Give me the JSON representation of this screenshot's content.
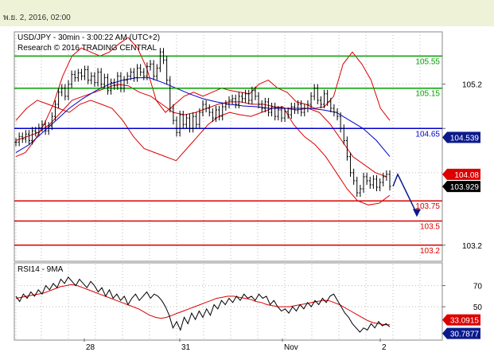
{
  "header": {
    "datetime": "พ.ย. 2, 2016, 02:00"
  },
  "chart_data": [
    {
      "type": "line",
      "title": "USD/JPY - 30min - 3:00:22 AM (UTC+2)",
      "subtitle": "Research © 2016 TRADING CENTRAL",
      "x_ticks": [
        "28",
        "31",
        "Nov",
        "2"
      ],
      "y_ticks": [
        105.2,
        104.65,
        103.2
      ],
      "ylim": [
        103.0,
        105.85
      ],
      "levels": [
        {
          "label": "105.55",
          "value": 105.55,
          "color": "#00a000"
        },
        {
          "label": "105.15",
          "value": 105.15,
          "color": "#00a000"
        },
        {
          "label": "104.65",
          "value": 104.65,
          "color": "#0000cc"
        },
        {
          "label": "103.75",
          "value": 103.75,
          "color": "#dd0000"
        },
        {
          "label": "103.5",
          "value": 103.5,
          "color": "#dd0000"
        },
        {
          "label": "103.2",
          "value": 103.2,
          "color": "#dd0000"
        }
      ],
      "price_tags": [
        {
          "label": "104.539",
          "value": 104.539,
          "bg": "#0a1a8c"
        },
        {
          "label": "104.08",
          "value": 104.08,
          "bg": "#dd0000"
        },
        {
          "label": "103.929",
          "value": 103.929,
          "bg": "#000000"
        }
      ],
      "series": [
        {
          "values": [
            104.48,
            104.55,
            104.52,
            104.58,
            104.5,
            104.62,
            104.6,
            104.66,
            104.7,
            104.62,
            104.68,
            104.8,
            104.95,
            105.1,
            105.15,
            105.05,
            105.2,
            105.32,
            105.28,
            105.34,
            105.3,
            105.38,
            105.25,
            105.3,
            105.22,
            105.35,
            105.2,
            105.28,
            105.12,
            105.22,
            105.18,
            105.3,
            105.15,
            105.25,
            105.3,
            105.35,
            105.28,
            105.4,
            105.35,
            105.3,
            105.42,
            105.45,
            105.3,
            105.4,
            105.6,
            105.5,
            105.25,
            104.9,
            104.75,
            104.6,
            104.82,
            104.7,
            104.78,
            104.65,
            104.8,
            104.7,
            104.85,
            104.95,
            104.9,
            104.85,
            104.78,
            104.88,
            104.8,
            104.92,
            104.95,
            105.0,
            105.02,
            104.95,
            105.05,
            105.02,
            105.08,
            105.0,
            105.12,
            105.05,
            104.95,
            104.9,
            104.98,
            104.85,
            104.92,
            104.8,
            104.88,
            104.78,
            104.86,
            104.82,
            104.92,
            104.88,
            104.95,
            104.85,
            104.9,
            104.95,
            105.05,
            105.15,
            105.0,
            104.95,
            105.08,
            104.98,
            104.9,
            104.85,
            104.8,
            104.65,
            104.5,
            104.3,
            104.1,
            104.0,
            103.85,
            103.9,
            104.05,
            104.0,
            103.95,
            104.02,
            103.92,
            103.98,
            104.05,
            104.08,
            103.93
          ],
          "color": "#000000"
        },
        {
          "values": [
            104.3,
            104.35,
            104.5,
            104.7,
            104.95,
            105.3,
            105.55,
            105.65,
            105.6,
            105.55,
            105.6,
            105.7,
            105.78,
            105.65,
            105.4,
            105.0,
            104.85,
            104.95,
            105.05,
            105.1,
            105.05,
            105.1,
            105.15,
            105.12,
            105.1,
            105.08,
            105.2,
            105.25,
            105.15,
            105.1,
            104.98,
            104.95,
            104.9,
            104.92,
            105.05,
            105.45,
            105.6,
            105.45,
            105.25,
            104.9,
            104.75
          ],
          "color": "#dd0000"
        },
        {
          "values": [
            104.75,
            104.9,
            105.0,
            104.95,
            104.9,
            104.85,
            104.95,
            105.0,
            104.95,
            104.9,
            104.75,
            104.55,
            104.4,
            104.35,
            104.3,
            104.25,
            104.4,
            104.55,
            104.7,
            104.8,
            104.85,
            104.82,
            104.8,
            104.85,
            104.9,
            104.92,
            104.7,
            104.55,
            104.45,
            104.3,
            104.1,
            103.9,
            103.75,
            103.7,
            103.72,
            103.82
          ],
          "color": "#dd0000"
        },
        {
          "values": [
            104.5,
            104.55,
            104.6,
            104.7,
            104.85,
            105.0,
            105.05,
            105.1,
            105.15,
            105.2,
            105.18,
            105.1,
            105.05,
            104.95,
            104.85,
            104.82,
            104.85,
            104.9,
            104.95,
            104.98,
            104.98,
            104.95,
            104.95,
            104.92,
            104.9,
            104.88,
            104.9,
            104.85,
            104.7,
            104.5,
            104.3,
            104.2,
            104.1,
            104.05
          ],
          "color": "#dd0000"
        },
        {
          "values": [
            104.35,
            104.45,
            104.6,
            104.75,
            104.9,
            105.02,
            105.12,
            105.2,
            105.25,
            105.28,
            105.28,
            105.22,
            105.15,
            105.08,
            105.02,
            104.98,
            104.95,
            104.93,
            104.92,
            104.9,
            104.9,
            104.9,
            104.9,
            104.88,
            104.85,
            104.75,
            104.65,
            104.5,
            104.3
          ],
          "color": "#0000cc"
        }
      ],
      "forecast": {
        "points": [
          [
            0,
            104.08
          ],
          [
            1,
            103.55
          ]
        ],
        "color": "#0a1a8c"
      },
      "grid": true
    },
    {
      "type": "line",
      "title": "RSI14 - 9MA",
      "y_ticks": [
        70,
        50
      ],
      "ylim": [
        20,
        90
      ],
      "price_tags": [
        {
          "label": "33.0915",
          "value": 33.0915,
          "bg": "#dd0000"
        },
        {
          "label": "30.7877",
          "value": 30.7877,
          "bg": "#0a1a8c"
        }
      ],
      "series": [
        {
          "values": [
            60,
            55,
            62,
            58,
            64,
            60,
            66,
            62,
            70,
            66,
            72,
            68,
            76,
            72,
            78,
            74,
            70,
            76,
            72,
            68,
            74,
            70,
            64,
            68,
            60,
            66,
            58,
            62,
            56,
            60,
            52,
            58,
            62,
            56,
            60,
            64,
            58,
            62,
            60,
            56,
            50,
            42,
            30,
            36,
            28,
            40,
            34,
            44,
            38,
            46,
            40,
            48,
            42,
            52,
            48,
            56,
            52,
            58,
            54,
            60,
            56,
            62,
            58,
            60,
            56,
            62,
            58,
            60,
            52,
            56,
            50,
            46,
            48,
            44,
            50,
            46,
            52,
            48,
            54,
            50,
            56,
            52,
            58,
            54,
            60,
            62,
            56,
            50,
            44,
            40,
            34,
            30,
            26,
            30,
            28,
            34,
            30,
            36,
            32,
            34,
            31
          ],
          "color": "#000000"
        },
        {
          "values": [
            58,
            59,
            60,
            61,
            62,
            63,
            65,
            67,
            69,
            70,
            71,
            70,
            68,
            66,
            64,
            62,
            60,
            58,
            56,
            54,
            52,
            50,
            48,
            45,
            42,
            40,
            39,
            40,
            42,
            44,
            46,
            48,
            50,
            52,
            54,
            56,
            58,
            59,
            60,
            60,
            59,
            58,
            57,
            55,
            54,
            52,
            51,
            50,
            50,
            50,
            51,
            52,
            53,
            54,
            55,
            56,
            56,
            54,
            52,
            49,
            46,
            43,
            40,
            37,
            35,
            34,
            33,
            33
          ],
          "color": "#dd0000"
        }
      ],
      "grid": true
    }
  ]
}
